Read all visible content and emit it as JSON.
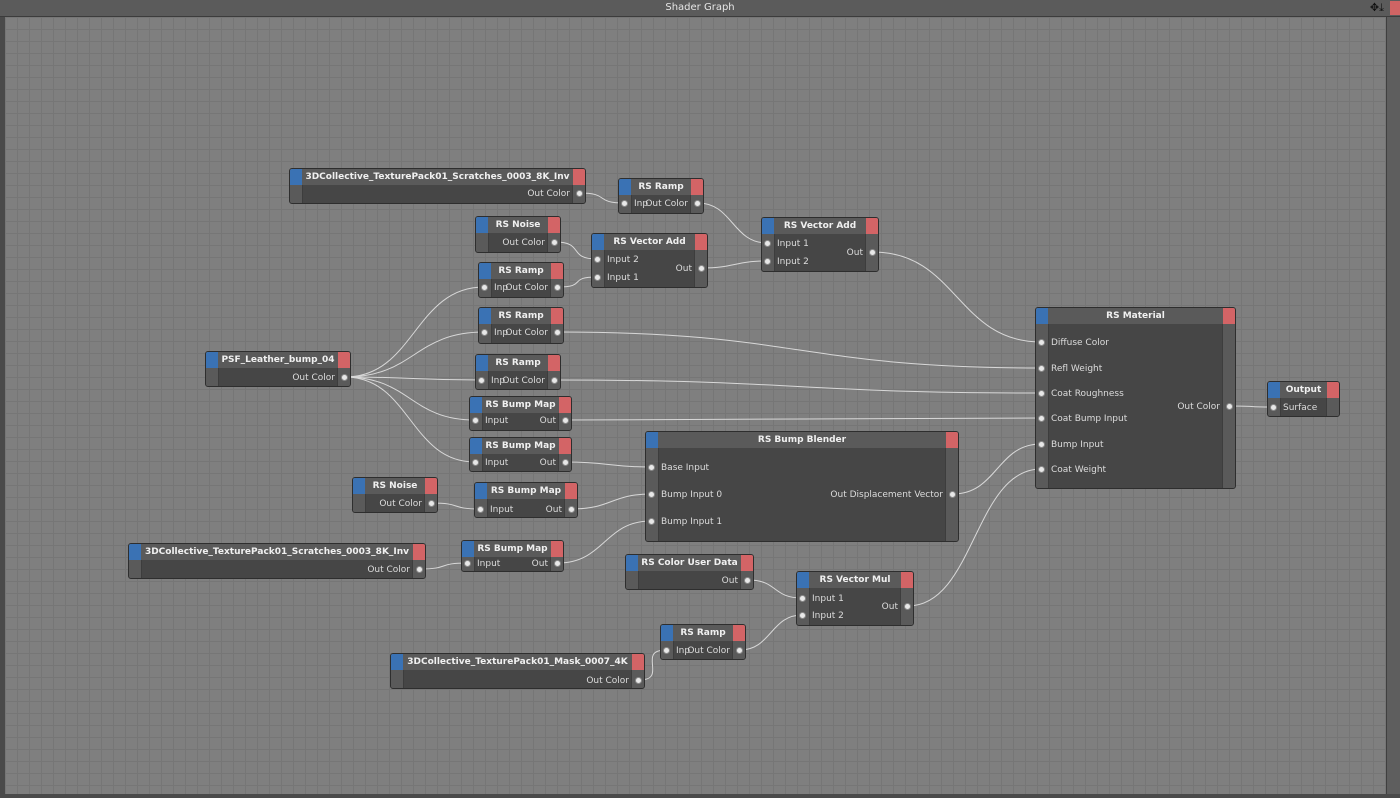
{
  "window": {
    "title": "Shader Graph",
    "icons": [
      "move-icon",
      "pin-down-icon"
    ]
  },
  "colors": {
    "input_cap": "#3a72b4",
    "output_cap": "#d36466",
    "canvas": "#7f7f7f",
    "node_body": "#464646",
    "wire": "#d8d8d8"
  },
  "nodes": [
    {
      "id": "tex1",
      "title": "3DCollective_TexturePack01_Scratches_0003_8K_Inv",
      "inputs": [],
      "outputs": [
        "Out Color"
      ]
    },
    {
      "id": "ramp1",
      "title": "RS Ramp",
      "inputs": [
        "Inp"
      ],
      "outputs": [
        "Out Color"
      ]
    },
    {
      "id": "noise1",
      "title": "RS Noise",
      "inputs": [],
      "outputs": [
        "Out Color"
      ]
    },
    {
      "id": "vadd1",
      "title": "RS Vector Add",
      "inputs": [
        "Input 2",
        "Input 1"
      ],
      "outputs": [
        "Out"
      ]
    },
    {
      "id": "ramp2",
      "title": "RS Ramp",
      "inputs": [
        "Inp"
      ],
      "outputs": [
        "Out Color"
      ]
    },
    {
      "id": "vadd2",
      "title": "RS Vector Add",
      "inputs": [
        "Input 1",
        "Input 2"
      ],
      "outputs": [
        "Out"
      ]
    },
    {
      "id": "ramp3",
      "title": "RS Ramp",
      "inputs": [
        "Inp"
      ],
      "outputs": [
        "Out Color"
      ]
    },
    {
      "id": "psf",
      "title": "PSF_Leather_bump_04",
      "inputs": [],
      "outputs": [
        "Out Color"
      ]
    },
    {
      "id": "ramp4",
      "title": "RS Ramp",
      "inputs": [
        "Inp"
      ],
      "outputs": [
        "Out Color"
      ]
    },
    {
      "id": "bump1",
      "title": "RS Bump Map",
      "inputs": [
        "Input"
      ],
      "outputs": [
        "Out"
      ]
    },
    {
      "id": "bump2",
      "title": "RS Bump Map",
      "inputs": [
        "Input"
      ],
      "outputs": [
        "Out"
      ]
    },
    {
      "id": "noise2",
      "title": "RS Noise",
      "inputs": [],
      "outputs": [
        "Out Color"
      ]
    },
    {
      "id": "bump3",
      "title": "RS Bump Map",
      "inputs": [
        "Input"
      ],
      "outputs": [
        "Out"
      ]
    },
    {
      "id": "blender",
      "title": "RS Bump Blender",
      "inputs": [
        "Base Input",
        "Bump Input 0",
        "Bump Input 1"
      ],
      "outputs": [
        "Out Displacement Vector"
      ]
    },
    {
      "id": "tex2",
      "title": "3DCollective_TexturePack01_Scratches_0003_8K_Inv",
      "inputs": [],
      "outputs": [
        "Out Color"
      ]
    },
    {
      "id": "bump4",
      "title": "RS Bump Map",
      "inputs": [
        "Input"
      ],
      "outputs": [
        "Out"
      ]
    },
    {
      "id": "coloruser",
      "title": "RS Color User Data",
      "inputs": [],
      "outputs": [
        "Out"
      ]
    },
    {
      "id": "vmul",
      "title": "RS Vector Mul",
      "inputs": [
        "Input 1",
        "Input 2"
      ],
      "outputs": [
        "Out"
      ]
    },
    {
      "id": "ramp5",
      "title": "RS Ramp",
      "inputs": [
        "Inp"
      ],
      "outputs": [
        "Out Color"
      ]
    },
    {
      "id": "tex3",
      "title": "3DCollective_TexturePack01_Mask_0007_4K",
      "inputs": [],
      "outputs": [
        "Out Color"
      ]
    },
    {
      "id": "material",
      "title": "RS Material",
      "inputs": [
        "Diffuse Color",
        "Refl Weight",
        "Coat Roughness",
        "Coat Bump Input",
        "Bump Input",
        "Coat Weight"
      ],
      "outputs": [
        "Out Color"
      ]
    },
    {
      "id": "output",
      "title": "Output",
      "inputs": [
        "Surface"
      ],
      "outputs": []
    }
  ],
  "connections": [
    [
      "tex1",
      0,
      "ramp1",
      0
    ],
    [
      "ramp1",
      0,
      "vadd2",
      0
    ],
    [
      "noise1",
      0,
      "vadd1",
      0
    ],
    [
      "ramp2",
      0,
      "vadd1",
      1
    ],
    [
      "vadd1",
      0,
      "vadd2",
      1
    ],
    [
      "vadd2",
      0,
      "material",
      0
    ],
    [
      "psf",
      0,
      "ramp2",
      0
    ],
    [
      "psf",
      0,
      "ramp3",
      0
    ],
    [
      "psf",
      0,
      "ramp4",
      0
    ],
    [
      "psf",
      0,
      "bump1",
      0
    ],
    [
      "psf",
      0,
      "bump2",
      0
    ],
    [
      "ramp3",
      0,
      "material",
      1
    ],
    [
      "ramp4",
      0,
      "material",
      2
    ],
    [
      "bump1",
      0,
      "material",
      3
    ],
    [
      "bump2",
      0,
      "blender",
      0
    ],
    [
      "noise2",
      0,
      "bump3",
      0
    ],
    [
      "bump3",
      0,
      "blender",
      1
    ],
    [
      "tex2",
      0,
      "bump4",
      0
    ],
    [
      "bump4",
      0,
      "blender",
      2
    ],
    [
      "blender",
      0,
      "material",
      4
    ],
    [
      "coloruser",
      0,
      "vmul",
      0
    ],
    [
      "ramp5",
      0,
      "vmul",
      1
    ],
    [
      "tex3",
      0,
      "ramp5",
      0
    ],
    [
      "vmul",
      0,
      "material",
      5
    ],
    [
      "material",
      0,
      "output",
      0
    ]
  ]
}
